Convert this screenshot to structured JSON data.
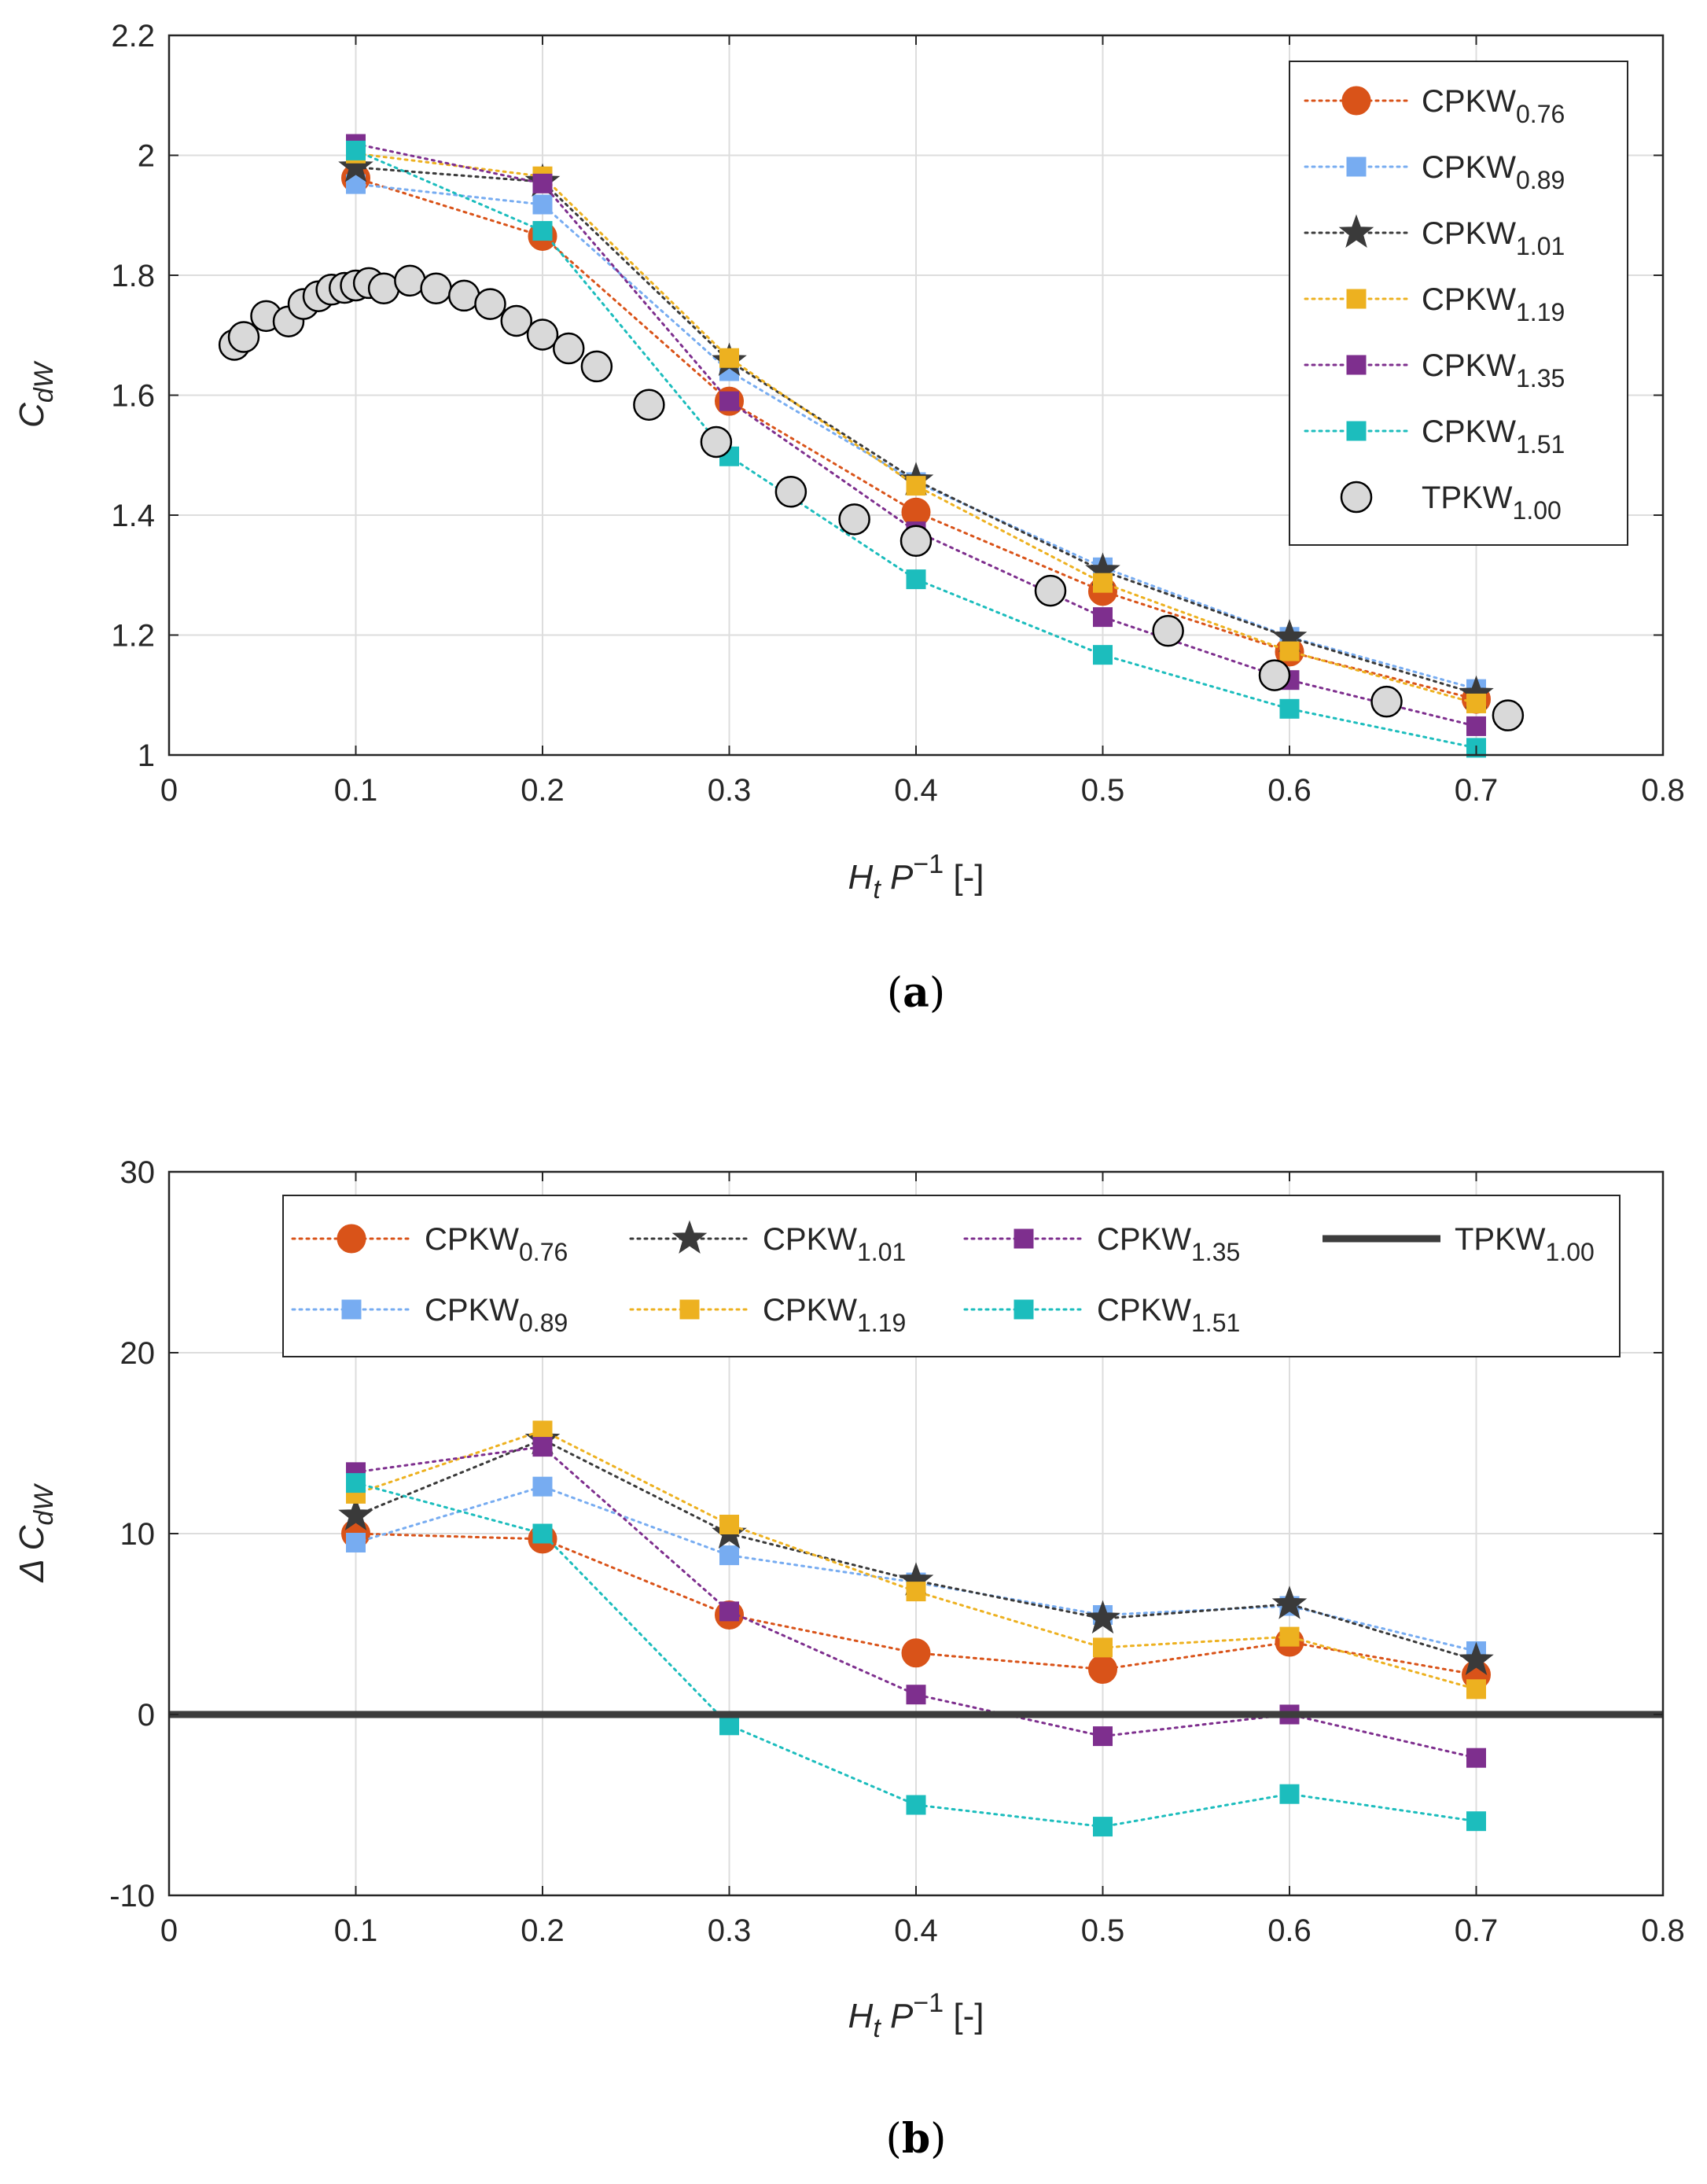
{
  "chart_data": [
    {
      "type": "line",
      "panel_label_text": "a",
      "xlabel": {
        "main": "H",
        "sub": "t",
        "mid": " P",
        "sup": "−1",
        "tail": " [-]"
      },
      "ylabel": {
        "main": "C",
        "sub": "dW"
      },
      "xlim": [
        0,
        0.8
      ],
      "ylim": [
        1,
        2.2
      ],
      "xticks": [
        0,
        0.1,
        0.2,
        0.3,
        0.4,
        0.5,
        0.6,
        0.7,
        0.8
      ],
      "yticks": [
        1,
        1.2,
        1.4,
        1.6,
        1.8,
        2,
        2.2
      ],
      "xtick_labels": [
        "0",
        "0.1",
        "0.2",
        "0.3",
        "0.4",
        "0.5",
        "0.6",
        "0.7",
        "0.8"
      ],
      "ytick_labels": [
        "1",
        "1.2",
        "1.4",
        "1.6",
        "1.8",
        "2",
        "2.2"
      ],
      "grid": true,
      "legend_position": "top-right",
      "series": [
        {
          "name": "CPKW",
          "sub": "0.76",
          "color": "#D95319",
          "marker": "circle",
          "x": [
            0.1,
            0.2,
            0.3,
            0.4,
            0.5,
            0.6,
            0.7
          ],
          "y": [
            1.962,
            1.865,
            1.59,
            1.405,
            1.273,
            1.172,
            1.093
          ]
        },
        {
          "name": "CPKW",
          "sub": "0.89",
          "color": "#77ACF1",
          "marker": "square",
          "x": [
            0.1,
            0.2,
            0.3,
            0.4,
            0.5,
            0.6,
            0.7
          ],
          "y": [
            1.952,
            1.918,
            1.64,
            1.455,
            1.313,
            1.197,
            1.11
          ]
        },
        {
          "name": "CPKW",
          "sub": "1.01",
          "color": "#3A3A3A",
          "marker": "star",
          "x": [
            0.1,
            0.2,
            0.3,
            0.4,
            0.5,
            0.6,
            0.7
          ],
          "y": [
            1.98,
            1.956,
            1.657,
            1.458,
            1.307,
            1.196,
            1.102
          ]
        },
        {
          "name": "CPKW",
          "sub": "1.19",
          "color": "#EDB120",
          "marker": "square",
          "x": [
            0.1,
            0.2,
            0.3,
            0.4,
            0.5,
            0.6,
            0.7
          ],
          "y": [
            2.003,
            1.965,
            1.662,
            1.449,
            1.287,
            1.173,
            1.086
          ]
        },
        {
          "name": "CPKW",
          "sub": "1.35",
          "color": "#7E2F8E",
          "marker": "square",
          "x": [
            0.1,
            0.2,
            0.3,
            0.4,
            0.5,
            0.6,
            0.7
          ],
          "y": [
            2.019,
            1.953,
            1.59,
            1.373,
            1.23,
            1.125,
            1.048
          ]
        },
        {
          "name": "CPKW",
          "sub": "1.51",
          "color": "#1CBDBD",
          "marker": "square",
          "x": [
            0.1,
            0.2,
            0.3,
            0.4,
            0.5,
            0.6,
            0.7
          ],
          "y": [
            2.008,
            1.874,
            1.498,
            1.293,
            1.167,
            1.077,
            1.012
          ]
        },
        {
          "name": "TPKW",
          "sub": "1.00",
          "color": "#000000",
          "fill": "#D9D9D9",
          "marker": "circle-open",
          "line": false,
          "x": [
            0.035,
            0.04,
            0.052,
            0.064,
            0.072,
            0.08,
            0.087,
            0.094,
            0.1,
            0.107,
            0.115,
            0.129,
            0.143,
            0.158,
            0.172,
            0.186,
            0.2,
            0.214,
            0.229,
            0.257,
            0.293,
            0.333,
            0.367,
            0.4,
            0.472,
            0.535,
            0.592,
            0.652,
            0.717
          ],
          "y": [
            1.684,
            1.697,
            1.732,
            1.723,
            1.752,
            1.765,
            1.776,
            1.779,
            1.783,
            1.787,
            1.778,
            1.791,
            1.778,
            1.766,
            1.752,
            1.724,
            1.701,
            1.678,
            1.648,
            1.584,
            1.522,
            1.439,
            1.393,
            1.357,
            1.274,
            1.207,
            1.133,
            1.089,
            1.066
          ]
        }
      ]
    },
    {
      "type": "line",
      "panel_label_text": "b",
      "xlabel": {
        "main": "H",
        "sub": "t",
        "mid": " P",
        "sup": "−1",
        "tail": " [-]"
      },
      "ylabel": {
        "main": "Δ C",
        "sub": "dW"
      },
      "xlim": [
        0,
        0.8
      ],
      "ylim": [
        -10,
        30
      ],
      "xticks": [
        0,
        0.1,
        0.2,
        0.3,
        0.4,
        0.5,
        0.6,
        0.7,
        0.8
      ],
      "yticks": [
        -10,
        0,
        10,
        20,
        30
      ],
      "xtick_labels": [
        "0",
        "0.1",
        "0.2",
        "0.3",
        "0.4",
        "0.5",
        "0.6",
        "0.7",
        "0.8"
      ],
      "ytick_labels": [
        "-10",
        "0",
        "10",
        "20",
        "30"
      ],
      "grid": true,
      "legend_position": "top",
      "series": [
        {
          "name": "CPKW",
          "sub": "0.76",
          "color": "#D95319",
          "marker": "circle",
          "x": [
            0.1,
            0.2,
            0.3,
            0.4,
            0.5,
            0.6,
            0.7
          ],
          "y": [
            10.0,
            9.7,
            5.5,
            3.4,
            2.5,
            4.0,
            2.2
          ]
        },
        {
          "name": "CPKW",
          "sub": "0.89",
          "color": "#77ACF1",
          "marker": "square",
          "x": [
            0.1,
            0.2,
            0.3,
            0.4,
            0.5,
            0.6,
            0.7
          ],
          "y": [
            9.5,
            12.6,
            8.8,
            7.3,
            5.5,
            6.0,
            3.5
          ]
        },
        {
          "name": "CPKW",
          "sub": "1.01",
          "color": "#3A3A3A",
          "marker": "star",
          "x": [
            0.1,
            0.2,
            0.3,
            0.4,
            0.5,
            0.6,
            0.7
          ],
          "y": [
            11.0,
            15.2,
            10.0,
            7.4,
            5.3,
            6.1,
            3.0
          ]
        },
        {
          "name": "CPKW",
          "sub": "1.19",
          "color": "#EDB120",
          "marker": "square",
          "x": [
            0.1,
            0.2,
            0.3,
            0.4,
            0.5,
            0.6,
            0.7
          ],
          "y": [
            12.2,
            15.7,
            10.5,
            6.8,
            3.7,
            4.3,
            1.4
          ]
        },
        {
          "name": "CPKW",
          "sub": "1.35",
          "color": "#7E2F8E",
          "marker": "square",
          "x": [
            0.1,
            0.2,
            0.3,
            0.4,
            0.5,
            0.6,
            0.7
          ],
          "y": [
            13.4,
            14.8,
            5.7,
            1.1,
            -1.2,
            0.0,
            -2.4
          ]
        },
        {
          "name": "CPKW",
          "sub": "1.51",
          "color": "#1CBDBD",
          "marker": "square",
          "x": [
            0.1,
            0.2,
            0.3,
            0.4,
            0.5,
            0.6,
            0.7
          ],
          "y": [
            12.8,
            10.0,
            -0.6,
            -5.0,
            -6.2,
            -4.4,
            -5.9
          ]
        },
        {
          "name": "TPKW",
          "sub": "1.00",
          "color": "#3D3D3D",
          "marker": "none",
          "line": true,
          "x": [
            0,
            0.8
          ],
          "y": [
            0,
            0
          ]
        }
      ]
    }
  ]
}
